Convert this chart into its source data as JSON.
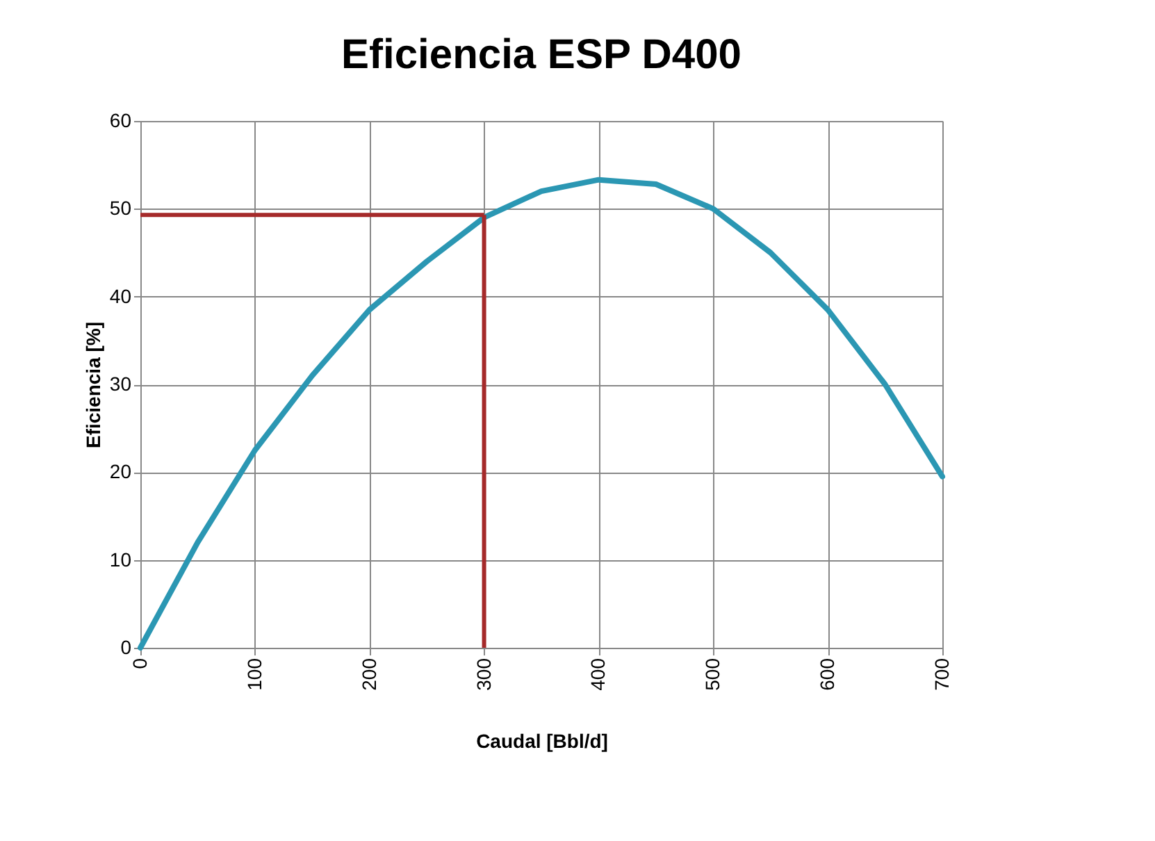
{
  "chart_data": {
    "type": "line",
    "title": "Eficiencia ESP D400",
    "xlabel": "Caudal [Bbl/d]",
    "ylabel": "Eficiencia [%]",
    "x": [
      0,
      50,
      100,
      150,
      200,
      250,
      300,
      350,
      400,
      450,
      500,
      550,
      600,
      650,
      700
    ],
    "series": [
      {
        "color": "#2b97b3",
        "values": [
          0,
          12,
          22.5,
          31,
          38.5,
          44,
          49,
          52,
          53.3,
          52.8,
          50,
          45,
          38.5,
          30,
          19.5
        ]
      }
    ],
    "xlim": [
      0,
      700
    ],
    "xticks": [
      0,
      100,
      200,
      300,
      400,
      500,
      600,
      700
    ],
    "ylim": [
      0,
      60
    ],
    "yticks": [
      0,
      10,
      20,
      30,
      40,
      50,
      60
    ],
    "grid": true,
    "marker": "none",
    "line_style": "solid",
    "ref_lines": [
      {
        "axis": "y",
        "value": 49.3,
        "color": "#a52a2a"
      },
      {
        "axis": "x",
        "value": 300,
        "color": "#a52a2a"
      }
    ]
  }
}
